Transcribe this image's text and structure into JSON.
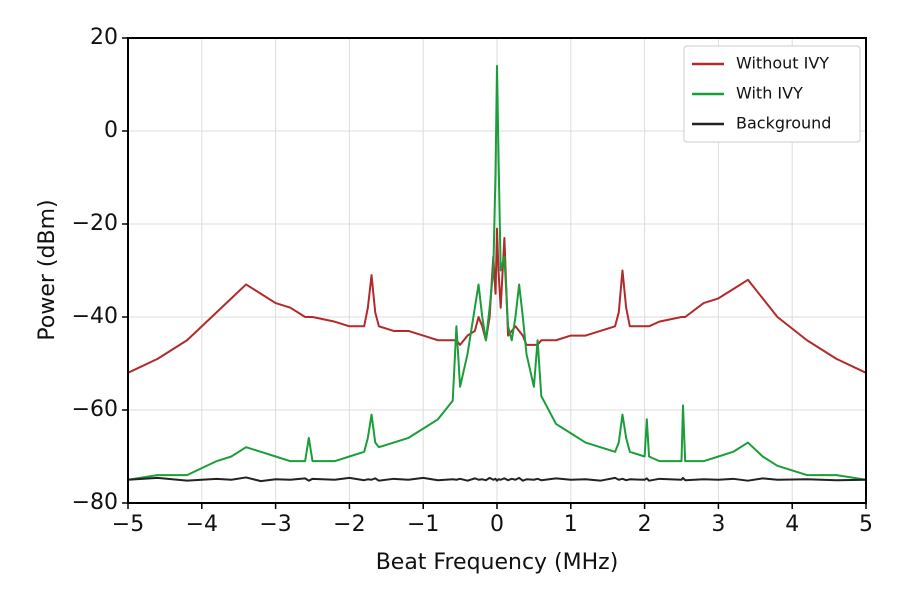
{
  "chart_data": {
    "type": "line",
    "xlabel": "Beat Frequency (MHz)",
    "ylabel": "Power (dBm)",
    "xlim": [
      -5,
      5
    ],
    "ylim": [
      -80,
      20
    ],
    "xticks": [
      {
        "value": -5,
        "label": "−5"
      },
      {
        "value": -4,
        "label": "−4"
      },
      {
        "value": -3,
        "label": "−3"
      },
      {
        "value": -2,
        "label": "−2"
      },
      {
        "value": -1,
        "label": "−1"
      },
      0,
      1,
      2,
      3,
      4,
      5
    ],
    "yticks": [
      {
        "value": -80,
        "label": "−80"
      },
      {
        "value": -60,
        "label": "−60"
      },
      {
        "value": -40,
        "label": "−40"
      },
      {
        "value": -20,
        "label": "−20"
      },
      0,
      20
    ],
    "grid": true,
    "legend": "upper right",
    "x": [
      -5,
      -4.6,
      -4.2,
      -3.8,
      -3.6,
      -3.4,
      -3.2,
      -3.0,
      -2.8,
      -2.6,
      -2.55,
      -2.5,
      -2.2,
      -2.0,
      -1.8,
      -1.75,
      -1.7,
      -1.65,
      -1.6,
      -1.4,
      -1.2,
      -1.0,
      -0.8,
      -0.6,
      -0.55,
      -0.5,
      -0.4,
      -0.3,
      -0.25,
      -0.2,
      -0.15,
      -0.1,
      -0.05,
      -0.02,
      0,
      0.02,
      0.05,
      0.1,
      0.15,
      0.2,
      0.25,
      0.3,
      0.35,
      0.4,
      0.5,
      0.55,
      0.6,
      0.8,
      1.0,
      1.2,
      1.4,
      1.6,
      1.65,
      1.7,
      1.75,
      1.8,
      2.0,
      2.03,
      2.06,
      2.2,
      2.5,
      2.52,
      2.55,
      2.8,
      3.0,
      3.2,
      3.4,
      3.6,
      3.8,
      4.2,
      4.6,
      5
    ],
    "series": [
      {
        "name": "Without IVY",
        "color": "#b22a2a",
        "values": [
          -52,
          -49,
          -45,
          -39,
          -36,
          -33,
          -35,
          -37,
          -38,
          -40,
          -40,
          -40,
          -41,
          -42,
          -42,
          -38,
          -31,
          -39,
          -42,
          -43,
          -43,
          -44,
          -45,
          -45,
          -45,
          -46,
          -44,
          -43,
          -40,
          -42,
          -45,
          -40,
          -27,
          -35,
          -21,
          -30,
          -38,
          -23,
          -44,
          -43,
          -42,
          -43,
          -44,
          -46,
          -46,
          -46,
          -45,
          -45,
          -44,
          -44,
          -43,
          -42,
          -39,
          -30,
          -38,
          -42,
          -42,
          -42,
          -42,
          -41,
          -40,
          -40,
          -40,
          -37,
          -36,
          -34,
          -32,
          -36,
          -40,
          -45,
          -49,
          -52
        ]
      },
      {
        "name": "With IVY",
        "color": "#1a9e3a",
        "values": [
          -75,
          -74,
          -74,
          -71,
          -70,
          -68,
          -69,
          -70,
          -71,
          -71,
          -66,
          -71,
          -71,
          -70,
          -69,
          -66,
          -61,
          -67,
          -68,
          -67,
          -66,
          -64,
          -62,
          -58,
          -42,
          -55,
          -48,
          -38,
          -33,
          -40,
          -45,
          -38,
          -30,
          -9,
          14,
          -5,
          -30,
          -27,
          -42,
          -45,
          -40,
          -33,
          -40,
          -48,
          -55,
          -45,
          -57,
          -63,
          -65,
          -67,
          -68,
          -69,
          -67,
          -61,
          -66,
          -69,
          -70,
          -62,
          -70,
          -71,
          -71,
          -59,
          -71,
          -71,
          -70,
          -69,
          -67,
          -70,
          -72,
          -74,
          -74,
          -75
        ]
      },
      {
        "name": "Background",
        "color": "#222222",
        "values": [
          -75,
          -74.6,
          -75.2,
          -74.8,
          -75,
          -74.5,
          -75.3,
          -74.9,
          -75,
          -74.7,
          -75.2,
          -74.8,
          -75,
          -74.6,
          -75.1,
          -74.9,
          -75,
          -74.7,
          -75.2,
          -74.8,
          -75,
          -74.6,
          -75.1,
          -74.9,
          -75,
          -74.8,
          -75.2,
          -74.7,
          -75,
          -74.9,
          -75.1,
          -74.6,
          -75,
          -74.8,
          -75.2,
          -74.9,
          -75,
          -74.7,
          -75.1,
          -74.8,
          -75,
          -74.6,
          -75.2,
          -74.9,
          -75,
          -74.8,
          -75.1,
          -74.7,
          -75,
          -74.9,
          -75.2,
          -74.6,
          -75,
          -74.8,
          -75.1,
          -74.9,
          -75,
          -74.7,
          -75.2,
          -74.8,
          -75,
          -74.6,
          -75.1,
          -74.9,
          -75,
          -74.8,
          -75.2,
          -74.7,
          -75,
          -74.9,
          -75.1,
          -75
        ]
      }
    ]
  }
}
